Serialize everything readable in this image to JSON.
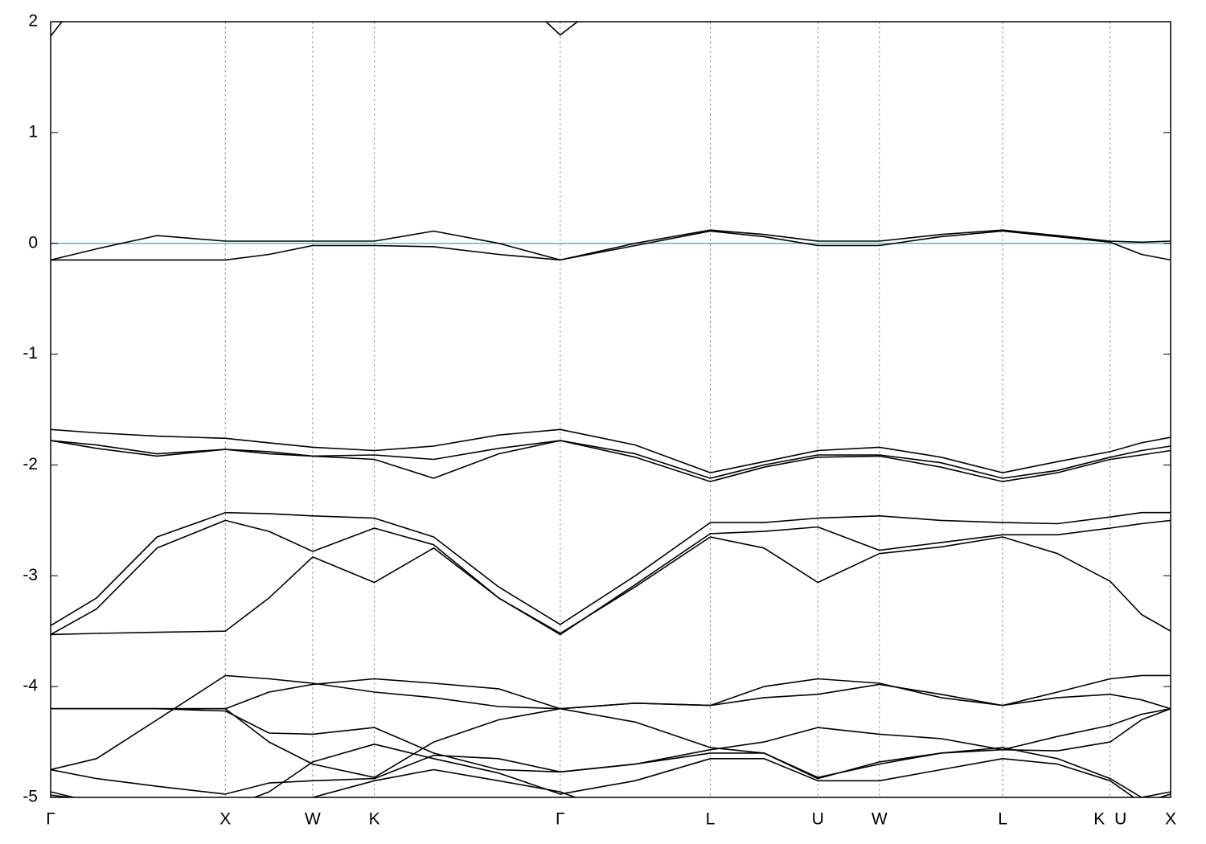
{
  "chart_data": {
    "type": "line",
    "color": "#000000",
    "reference_line": {
      "value": 0,
      "color": "#5ab4cc"
    },
    "x": [
      0,
      0.041,
      0.095,
      0.156,
      0.195,
      0.234,
      0.289,
      0.342,
      0.4,
      0.455,
      0.522,
      0.589,
      0.637,
      0.685,
      0.74,
      0.795,
      0.85,
      0.899,
      0.946,
      0.974,
      1.0
    ],
    "xlim": [
      0,
      1.0
    ],
    "xticks": [
      {
        "value": 0,
        "label": "Γ"
      },
      {
        "value": 0.156,
        "label": "X"
      },
      {
        "value": 0.234,
        "label": "W"
      },
      {
        "value": 0.289,
        "label": "K"
      },
      {
        "value": 0.455,
        "label": "Γ"
      },
      {
        "value": 0.589,
        "label": "L"
      },
      {
        "value": 0.685,
        "label": "U"
      },
      {
        "value": 0.74,
        "label": "W"
      },
      {
        "value": 0.85,
        "label": "L"
      },
      {
        "value": 0.946,
        "label": "K U"
      },
      {
        "value": 1.0,
        "label": "X"
      }
    ],
    "ylim": [
      -5,
      2
    ],
    "yticks": [
      -5,
      -4,
      -3,
      -2,
      -1,
      0,
      1,
      2
    ],
    "grid": true,
    "series": [
      {
        "values": [
          1.87,
          2.4,
          null,
          null,
          null,
          null,
          null,
          null,
          2.4,
          1.88,
          2.4,
          null,
          null,
          null,
          null,
          null,
          null,
          null,
          null,
          null,
          null
        ]
      },
      {
        "values": [
          -0.15,
          -0.05,
          0.07,
          0.02,
          0.02,
          0.02,
          0.02,
          0.11,
          0.0,
          -0.15,
          0.0,
          0.12,
          0.08,
          0.02,
          0.02,
          0.08,
          0.12,
          0.07,
          0.02,
          0.01,
          0.02
        ]
      },
      {
        "values": [
          -0.15,
          -0.15,
          -0.15,
          -0.15,
          -0.1,
          -0.02,
          -0.02,
          -0.03,
          -0.1,
          -0.15,
          -0.02,
          0.11,
          0.06,
          -0.02,
          -0.02,
          0.06,
          0.11,
          0.06,
          0.01,
          -0.1,
          -0.15
        ]
      },
      {
        "values": [
          -1.68,
          -1.71,
          -1.74,
          -1.76,
          -1.8,
          -1.84,
          -1.87,
          -1.83,
          -1.73,
          -1.68,
          -1.82,
          -2.07,
          -1.97,
          -1.87,
          -1.84,
          -1.93,
          -2.07,
          -1.97,
          -1.88,
          -1.8,
          -1.75
        ]
      },
      {
        "values": [
          -1.78,
          -1.85,
          -1.92,
          -1.86,
          -1.88,
          -1.92,
          -1.91,
          -1.95,
          -1.85,
          -1.78,
          -1.9,
          -2.12,
          -2.0,
          -1.91,
          -1.91,
          -1.98,
          -2.12,
          -2.05,
          -1.93,
          -1.87,
          -1.83
        ]
      },
      {
        "values": [
          -1.78,
          -1.82,
          -1.9,
          -1.86,
          -1.9,
          -1.92,
          -1.95,
          -2.12,
          -1.9,
          -1.78,
          -1.93,
          -2.15,
          -2.02,
          -1.93,
          -1.92,
          -2.02,
          -2.15,
          -2.07,
          -1.95,
          -1.91,
          -1.87
        ]
      },
      {
        "values": [
          -3.45,
          -3.2,
          -2.65,
          -2.43,
          -2.44,
          -2.46,
          -2.48,
          -2.65,
          -3.1,
          -3.44,
          -3.0,
          -2.52,
          -2.52,
          -2.48,
          -2.46,
          -2.5,
          -2.52,
          -2.53,
          -2.47,
          -2.43,
          -2.43
        ]
      },
      {
        "values": [
          -3.53,
          -3.3,
          -2.75,
          -2.5,
          -2.6,
          -2.78,
          -2.57,
          -2.72,
          -3.2,
          -3.53,
          -3.08,
          -2.62,
          -2.6,
          -2.56,
          -2.77,
          -2.7,
          -2.63,
          -2.63,
          -2.57,
          -2.53,
          -2.5
        ]
      },
      {
        "values": [
          -3.53,
          -3.52,
          -3.51,
          -3.5,
          -3.2,
          -2.83,
          -3.06,
          -2.75,
          -3.2,
          -3.52,
          -3.1,
          -2.65,
          -2.75,
          -3.06,
          -2.8,
          -2.74,
          -2.65,
          -2.8,
          -3.05,
          -3.35,
          -3.5
        ]
      },
      {
        "values": [
          -4.75,
          -4.65,
          -4.3,
          -3.9,
          -3.93,
          -3.97,
          -4.05,
          -4.1,
          -4.18,
          -4.2,
          -4.15,
          -4.17,
          -4.0,
          -3.93,
          -3.97,
          -4.1,
          -4.17,
          -4.05,
          -3.93,
          -3.9,
          -3.9
        ]
      },
      {
        "values": [
          -4.2,
          -4.2,
          -4.2,
          -4.2,
          -4.05,
          -3.98,
          -3.93,
          -3.97,
          -4.02,
          -4.2,
          -4.15,
          -4.17,
          -4.1,
          -4.07,
          -3.98,
          -4.07,
          -4.17,
          -4.1,
          -4.07,
          -4.12,
          -4.2
        ]
      },
      {
        "values": [
          -4.2,
          -4.2,
          -4.2,
          -4.22,
          -4.42,
          -4.43,
          -4.37,
          -4.6,
          -4.75,
          -4.77,
          -4.7,
          -4.57,
          -4.5,
          -4.37,
          -4.43,
          -4.47,
          -4.57,
          -4.58,
          -4.5,
          -4.3,
          -4.2
        ]
      },
      {
        "values": [
          -4.2,
          -4.2,
          -4.2,
          -4.2,
          -4.5,
          -4.7,
          -4.82,
          -4.5,
          -4.3,
          -4.2,
          -4.32,
          -4.55,
          -4.6,
          -4.82,
          -4.7,
          -4.6,
          -4.57,
          -4.45,
          -4.35,
          -4.25,
          -4.2
        ]
      },
      {
        "values": [
          -4.75,
          -4.83,
          -4.9,
          -4.97,
          -4.87,
          -4.85,
          -4.83,
          -4.62,
          -4.65,
          -4.77,
          -4.7,
          -4.6,
          -4.6,
          -4.83,
          -4.68,
          -4.6,
          -4.55,
          -4.65,
          -4.83,
          -5.0,
          -4.95
        ]
      },
      {
        "values": [
          -4.95,
          -5.05,
          -5.1,
          -5.1,
          -4.95,
          -4.68,
          -4.52,
          -4.65,
          -4.78,
          -4.97,
          -4.85,
          -4.65,
          -4.65,
          -4.85,
          -4.85,
          -4.75,
          -4.65,
          -4.7,
          -4.85,
          -5.05,
          -4.97
        ]
      },
      {
        "values": [
          -4.98,
          -5.03,
          -5.08,
          -5.2,
          -5.1,
          -5.0,
          -4.85,
          -4.75,
          -4.85,
          -4.95,
          -5.2,
          null,
          null,
          null,
          null,
          null,
          null,
          null,
          null,
          null,
          null
        ]
      }
    ]
  }
}
